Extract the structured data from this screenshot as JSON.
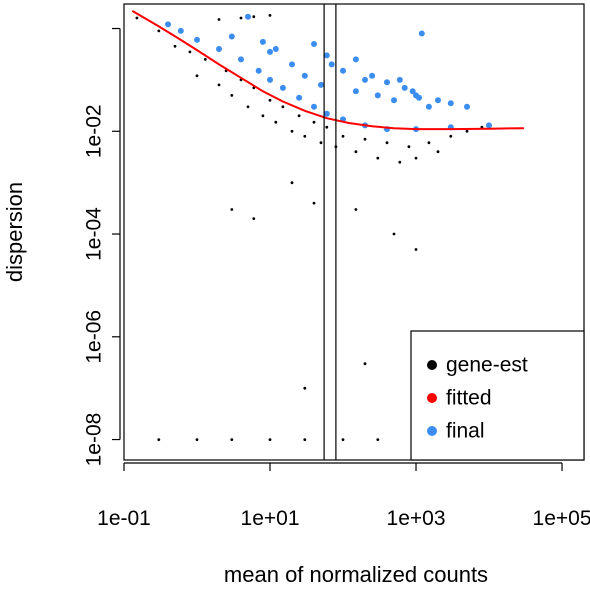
{
  "chart_data": {
    "type": "scatter",
    "title": "",
    "xlabel": "mean of normalized counts",
    "ylabel": "dispersion",
    "x_scale": "log",
    "y_scale": "log",
    "xlim": [
      0.1,
      200000
    ],
    "ylim": [
      4e-09,
      3
    ],
    "x_ticks": [
      {
        "value": 0.1,
        "label": "1e-01"
      },
      {
        "value": 10,
        "label": "1e+01"
      },
      {
        "value": 1000,
        "label": "1e+03"
      },
      {
        "value": 100000,
        "label": "1e+05"
      }
    ],
    "y_ticks": [
      {
        "value": 1e-08,
        "label": "1e-08"
      },
      {
        "value": 1e-06,
        "label": "1e-06"
      },
      {
        "value": 0.0001,
        "label": "1e-04"
      },
      {
        "value": 0.01,
        "label": "1e-02"
      },
      {
        "value": 1,
        "label": ""
      }
    ],
    "vlines": [
      55,
      80
    ],
    "grid": false,
    "legend": {
      "position": "bottom-right",
      "entries": [
        {
          "label": "gene-est",
          "color": "#000000"
        },
        {
          "label": "fitted",
          "color": "#ff0000"
        },
        {
          "label": "final",
          "color": "#3b8ef0"
        }
      ]
    },
    "series": [
      {
        "name": "gene-est",
        "color": "#000000",
        "points": [
          [
            0.15,
            1.6
          ],
          [
            0.3,
            0.9
          ],
          [
            0.5,
            0.45
          ],
          [
            0.8,
            0.35
          ],
          [
            1.0,
            0.12
          ],
          [
            1.3,
            0.25
          ],
          [
            2,
            0.08
          ],
          [
            2.5,
            0.15
          ],
          [
            3,
            0.05
          ],
          [
            4,
            0.1
          ],
          [
            5,
            0.03
          ],
          [
            6,
            0.07
          ],
          [
            8,
            0.02
          ],
          [
            10,
            0.04
          ],
          [
            12,
            0.015
          ],
          [
            15,
            0.03
          ],
          [
            20,
            0.01
          ],
          [
            25,
            0.02
          ],
          [
            30,
            0.008
          ],
          [
            40,
            0.015
          ],
          [
            50,
            0.006
          ],
          [
            60,
            0.012
          ],
          [
            80,
            0.005
          ],
          [
            100,
            0.008
          ],
          [
            150,
            0.004
          ],
          [
            200,
            0.007
          ],
          [
            300,
            0.003
          ],
          [
            400,
            0.006
          ],
          [
            600,
            0.0025
          ],
          [
            800,
            0.005
          ],
          [
            1000,
            0.003
          ],
          [
            1500,
            0.006
          ],
          [
            2000,
            0.004
          ],
          [
            3000,
            0.008
          ],
          [
            5000,
            0.01
          ],
          [
            8000,
            0.012
          ],
          [
            3,
            0.0003
          ],
          [
            6,
            0.0002
          ],
          [
            20,
            0.001
          ],
          [
            40,
            0.0004
          ],
          [
            150,
            0.0003
          ],
          [
            500,
            0.0001
          ],
          [
            1000,
            5e-05
          ],
          [
            30,
            1e-07
          ],
          [
            200,
            3e-07
          ],
          [
            2,
            1.5
          ],
          [
            4,
            1.6
          ],
          [
            6,
            1.7
          ],
          [
            10,
            1.8
          ],
          [
            0.3,
            1e-08
          ],
          [
            1,
            1e-08
          ],
          [
            3,
            1e-08
          ],
          [
            10,
            1e-08
          ],
          [
            30,
            1e-08
          ],
          [
            100,
            1e-08
          ],
          [
            300,
            1e-08
          ],
          [
            1000,
            1e-08
          ]
        ]
      },
      {
        "name": "final",
        "color": "#3b8ef0",
        "points": [
          [
            5,
            1.7
          ],
          [
            3,
            0.7
          ],
          [
            10,
            0.35
          ],
          [
            20,
            0.2
          ],
          [
            30,
            0.12
          ],
          [
            50,
            0.08
          ],
          [
            70,
            0.2
          ],
          [
            100,
            0.15
          ],
          [
            150,
            0.06
          ],
          [
            200,
            0.1
          ],
          [
            300,
            0.05
          ],
          [
            400,
            0.09
          ],
          [
            500,
            0.04
          ],
          [
            700,
            0.07
          ],
          [
            1000,
            0.05
          ],
          [
            1500,
            0.03
          ],
          [
            2000,
            0.04
          ],
          [
            3000,
            0.035
          ],
          [
            5000,
            0.03
          ],
          [
            40,
            0.5
          ],
          [
            60,
            0.3
          ],
          [
            150,
            0.25
          ],
          [
            1200,
            0.8
          ],
          [
            250,
            0.12
          ],
          [
            600,
            0.1
          ],
          [
            900,
            0.06
          ],
          [
            1100,
            0.045
          ],
          [
            8,
            0.55
          ],
          [
            12,
            0.4
          ],
          [
            0.4,
            1.2
          ],
          [
            0.6,
            0.9
          ],
          [
            1,
            0.6
          ],
          [
            2,
            0.4
          ],
          [
            4,
            0.25
          ],
          [
            7,
            0.15
          ],
          [
            10,
            0.1
          ],
          [
            15,
            0.07
          ],
          [
            25,
            0.045
          ],
          [
            40,
            0.03
          ],
          [
            60,
            0.022
          ],
          [
            100,
            0.017
          ],
          [
            200,
            0.013
          ],
          [
            400,
            0.011
          ],
          [
            1000,
            0.011
          ],
          [
            3000,
            0.012
          ],
          [
            10000,
            0.013
          ]
        ]
      }
    ],
    "fitted_curve": {
      "name": "fitted",
      "color": "#ff0000",
      "points": [
        [
          0.13,
          2.2
        ],
        [
          0.3,
          1.1
        ],
        [
          0.6,
          0.6
        ],
        [
          1,
          0.38
        ],
        [
          2,
          0.2
        ],
        [
          4,
          0.11
        ],
        [
          8,
          0.06
        ],
        [
          15,
          0.038
        ],
        [
          30,
          0.025
        ],
        [
          60,
          0.018
        ],
        [
          120,
          0.0145
        ],
        [
          250,
          0.0125
        ],
        [
          500,
          0.0115
        ],
        [
          1000,
          0.011
        ],
        [
          3000,
          0.011
        ],
        [
          10000,
          0.0112
        ],
        [
          30000,
          0.0115
        ]
      ]
    }
  }
}
